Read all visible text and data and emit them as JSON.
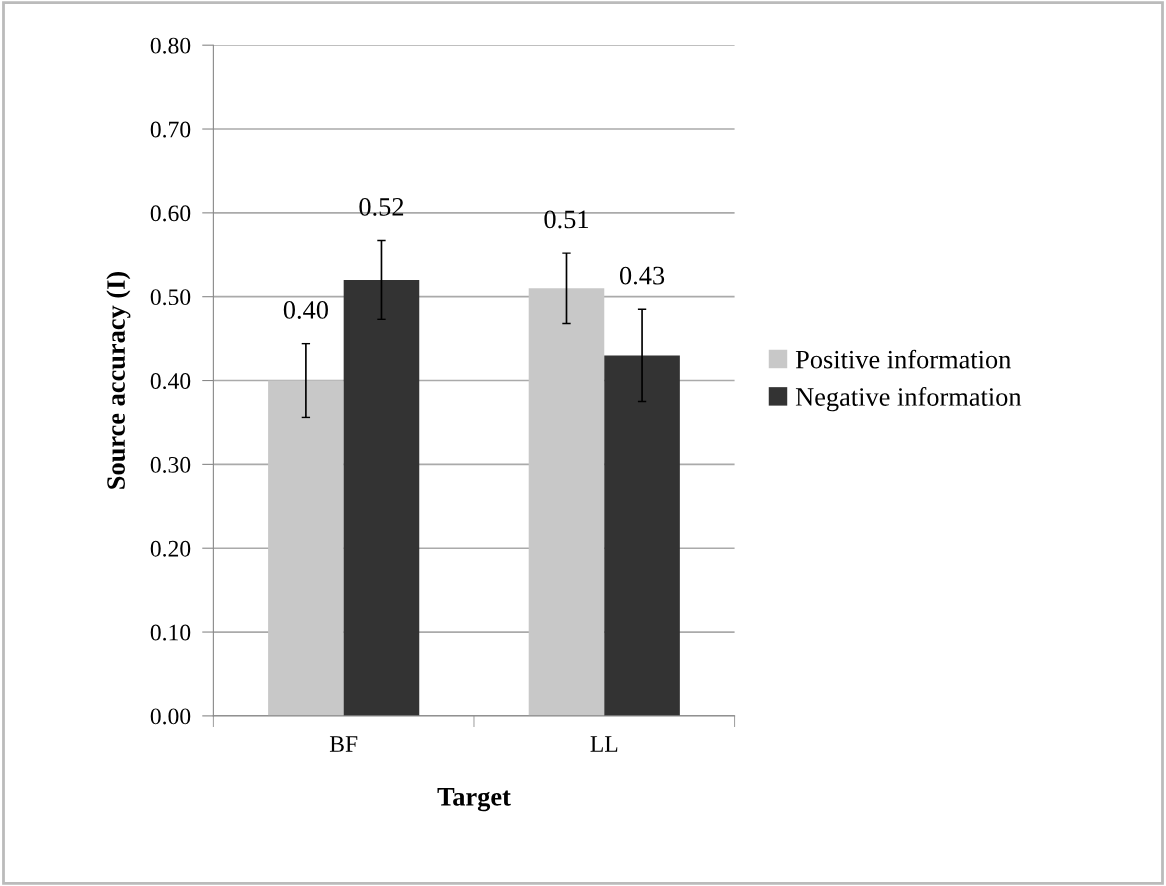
{
  "chart_data": {
    "type": "bar",
    "xlabel": "Target",
    "ylabel": "Source accuracy (I)",
    "categories": [
      "BF",
      "LL"
    ],
    "series": [
      {
        "name": "Positive information",
        "color": "#c8c8c8",
        "values": [
          0.4,
          0.51
        ],
        "errors": [
          0.044,
          0.042
        ],
        "value_labels": [
          "0.40",
          "0.51"
        ]
      },
      {
        "name": "Negative information",
        "color": "#333333",
        "values": [
          0.52,
          0.43
        ],
        "errors": [
          0.047,
          0.055
        ],
        "value_labels": [
          "0.52",
          "0.43"
        ]
      }
    ],
    "ylim": [
      0,
      0.8
    ],
    "yticks": [
      {
        "value": 0,
        "label": "0.00"
      },
      {
        "value": 0.1,
        "label": "0.10"
      },
      {
        "value": 0.2,
        "label": "0.20"
      },
      {
        "value": 0.3,
        "label": "0.30"
      },
      {
        "value": 0.4,
        "label": "0.40"
      },
      {
        "value": 0.5,
        "label": "0.50"
      },
      {
        "value": 0.6,
        "label": "0.60"
      },
      {
        "value": 0.7,
        "label": "0.70"
      },
      {
        "value": 0.8,
        "label": "0.80"
      }
    ],
    "grid": "y",
    "legend": "right"
  }
}
